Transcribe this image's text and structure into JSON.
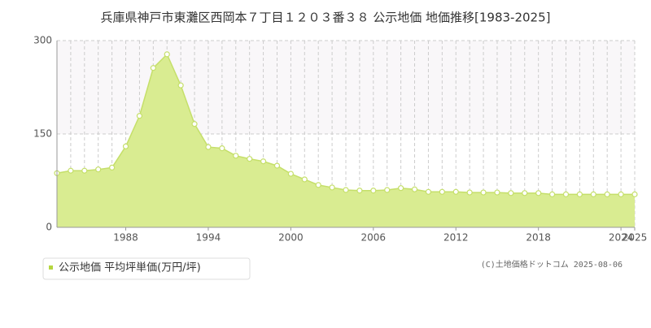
{
  "chart_data": {
    "type": "area",
    "title": "兵庫県神戸市東灘区西岡本７丁目１２０３番３８ 公示地価 地価推移[1983-2025]",
    "x": [
      1983,
      1984,
      1985,
      1986,
      1987,
      1988,
      1989,
      1990,
      1991,
      1992,
      1993,
      1994,
      1995,
      1996,
      1997,
      1998,
      1999,
      2000,
      2001,
      2002,
      2003,
      2004,
      2005,
      2006,
      2007,
      2008,
      2009,
      2010,
      2011,
      2012,
      2013,
      2014,
      2015,
      2016,
      2017,
      2018,
      2019,
      2020,
      2021,
      2022,
      2023,
      2024,
      2025
    ],
    "series": [
      {
        "name": "公示地価 平均坪単価(万円/坪)",
        "color": "#c5df6a",
        "values": [
          87,
          91,
          91,
          93,
          96,
          130,
          179,
          256,
          278,
          228,
          166,
          129,
          127,
          115,
          110,
          106,
          99,
          86,
          77,
          68,
          64,
          60,
          59,
          59,
          60,
          63,
          61,
          57,
          57,
          57,
          56,
          56,
          56,
          55,
          55,
          55,
          53,
          53,
          53,
          53,
          53,
          53,
          53
        ]
      }
    ],
    "xlim": [
      1983,
      2025
    ],
    "xticks": [
      1988,
      1994,
      2000,
      2006,
      2012,
      2018,
      2024,
      2025
    ],
    "ylim": [
      0,
      300
    ],
    "yticks": [
      0,
      150,
      300
    ],
    "grid": true,
    "copyright": "(C)土地価格ドットコム 2025-08-06"
  }
}
